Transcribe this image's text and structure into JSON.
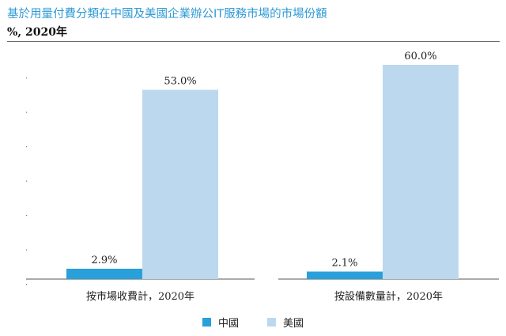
{
  "title": "基於用量付費分類在中國及美國企業辦公IT服務市場的市場份額",
  "subtitle": "%, 2020年",
  "colors": {
    "title": "#2e9ad4",
    "china": "#2aa0da",
    "usa": "#bcd8ef",
    "axis": "#555555"
  },
  "legend": {
    "china": "中國",
    "usa": "美國"
  },
  "chart_data": {
    "type": "bar",
    "title": "基於用量付費分類在中國及美國企業辦公IT服務市場的市場份額",
    "subtitle": "%, 2020年",
    "xlabel": "",
    "ylabel": "",
    "ylim": [
      0,
      60
    ],
    "grid": false,
    "legend_position": "bottom",
    "categories": [
      "按市場收費計，2020年",
      "按設備數量計，2020年"
    ],
    "series": [
      {
        "name": "中國",
        "values": [
          2.9,
          2.1
        ],
        "labels": [
          "2.9%",
          "2.1%"
        ]
      },
      {
        "name": "美國",
        "values": [
          53.0,
          60.0
        ],
        "labels": [
          "53.0%",
          "60.0%"
        ]
      }
    ]
  }
}
